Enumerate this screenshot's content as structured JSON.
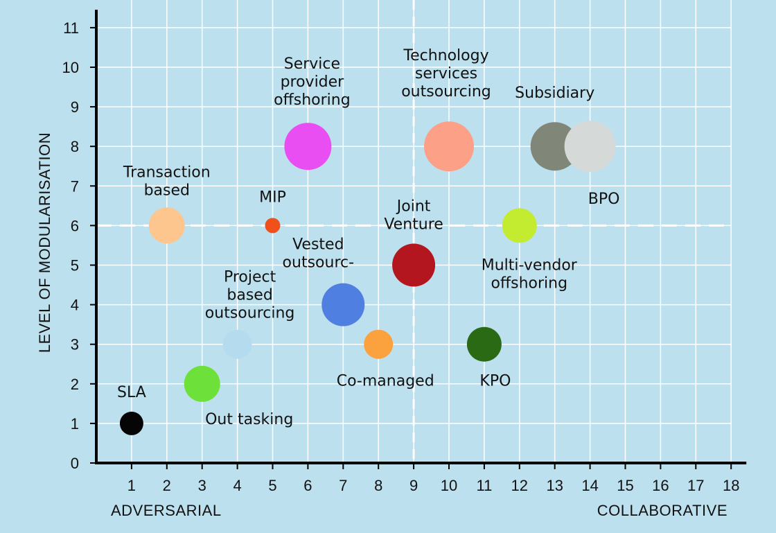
{
  "chart_data": {
    "type": "scatter",
    "title": "",
    "xlabel": "",
    "ylabel": "LEVEL OF MODULARISATION",
    "x_end_labels": {
      "left": "ADVERSARIAL",
      "right": "COLLABORATIVE"
    },
    "xlim": [
      0,
      18
    ],
    "ylim": [
      0,
      11
    ],
    "xticks": [
      1,
      2,
      3,
      4,
      5,
      6,
      7,
      8,
      9,
      10,
      11,
      12,
      13,
      14,
      15,
      16,
      17,
      18
    ],
    "yticks": [
      0,
      1,
      2,
      3,
      4,
      5,
      6,
      7,
      8,
      9,
      10,
      11
    ],
    "grid": true,
    "reference_lines": {
      "x": 9,
      "y": 6,
      "style": "dashed"
    },
    "colors": {
      "background": "#bde0ee",
      "grid": "#ffffff",
      "axis": "#000000"
    },
    "points": [
      {
        "name": "SLA",
        "x": 1,
        "y": 1,
        "size": 0.85,
        "color": "#050505",
        "label": [
          "SLA"
        ]
      },
      {
        "name": "Out tasking",
        "x": 3,
        "y": 2,
        "size": 1.3,
        "color": "#6ee03a",
        "label": [
          "Out tasking"
        ]
      },
      {
        "name": "Project based outsourcing",
        "x": 4,
        "y": 3,
        "size": 1.05,
        "color": "#b5dcee",
        "label": [
          "Project",
          "based",
          "outsourcing"
        ]
      },
      {
        "name": "Transaction based",
        "x": 2,
        "y": 6,
        "size": 1.3,
        "color": "#fdc68e",
        "label": [
          "Transaction",
          "based"
        ]
      },
      {
        "name": "MIP",
        "x": 5,
        "y": 6,
        "size": 0.55,
        "color": "#f2501b",
        "label": [
          "MIP"
        ]
      },
      {
        "name": "Service provider offshoring",
        "x": 6,
        "y": 8,
        "size": 1.7,
        "color": "#e94ef2",
        "label": [
          "Service",
          "provider",
          "offshoring"
        ]
      },
      {
        "name": "Vested outsourc-",
        "x": 7,
        "y": 4,
        "size": 1.55,
        "color": "#4f7fe0",
        "label": [
          "Vested",
          "outsourc-"
        ]
      },
      {
        "name": "Co-managed",
        "x": 8,
        "y": 3,
        "size": 1.05,
        "color": "#fba23e",
        "label": [
          "Co-managed"
        ]
      },
      {
        "name": "Joint Venture",
        "x": 9,
        "y": 5,
        "size": 1.55,
        "color": "#b3161e",
        "label": [
          "Joint",
          "Venture"
        ]
      },
      {
        "name": "Technology services outsourcing",
        "x": 10,
        "y": 8,
        "size": 1.8,
        "color": "#fca088",
        "label": [
          "Technology",
          "services",
          "outsourcing"
        ]
      },
      {
        "name": "KPO",
        "x": 11,
        "y": 3,
        "size": 1.25,
        "color": "#2b6a15",
        "label": [
          "KPO"
        ]
      },
      {
        "name": "Multi-vendor offshoring",
        "x": 12,
        "y": 6,
        "size": 1.25,
        "color": "#c3ec30",
        "label": [
          "Multi-vendor",
          "offshoring"
        ]
      },
      {
        "name": "Subsidiary",
        "x": 13,
        "y": 8,
        "size": 1.75,
        "color": "#808678",
        "label": [
          "Subsidiary"
        ]
      },
      {
        "name": "BPO",
        "x": 14,
        "y": 8,
        "size": 1.85,
        "color": "#d5d9d8",
        "label": [
          "BPO"
        ]
      }
    ]
  }
}
